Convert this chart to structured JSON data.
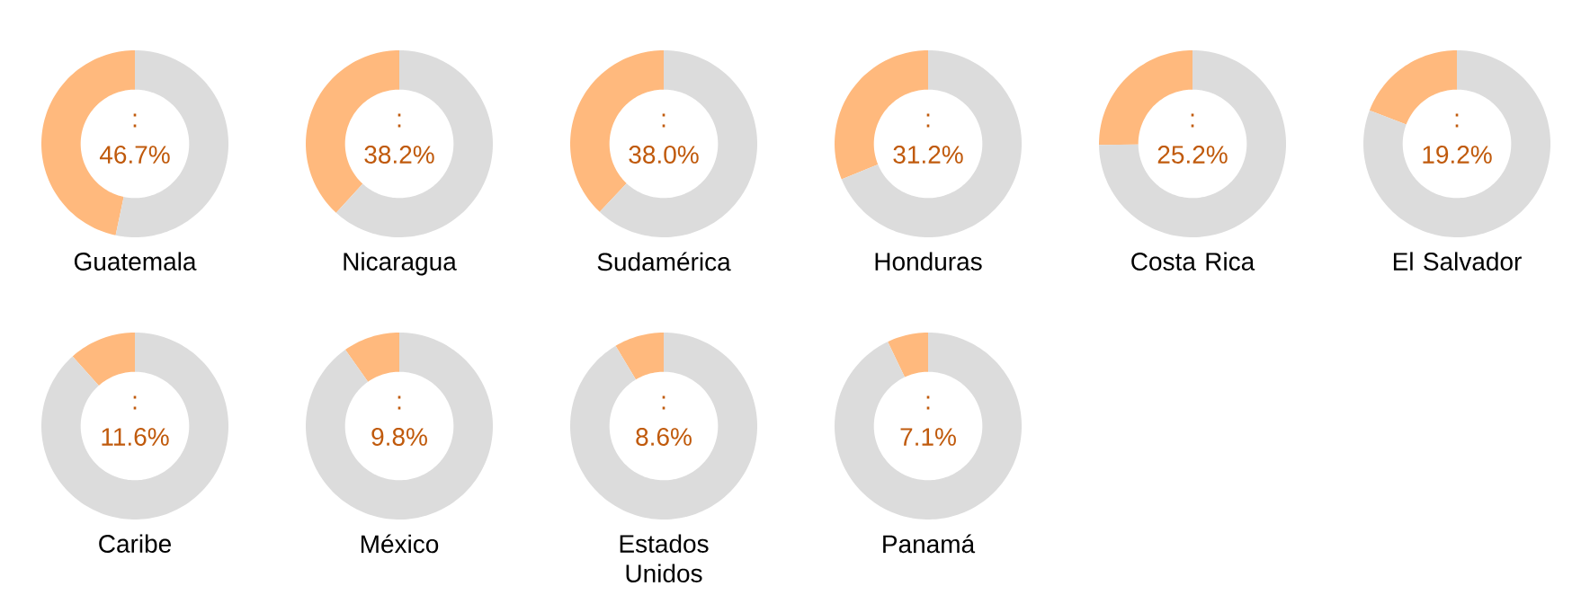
{
  "chart_data": [
    {
      "type": "donut",
      "title": "Guatemala",
      "categories": [
        null,
        null
      ],
      "values": [
        46.7,
        53.3
      ],
      "colors": [
        "#ffb97d",
        "#dcdcdc"
      ],
      "annotations": [
        ":",
        "46.7%"
      ]
    },
    {
      "type": "donut",
      "title": "Nicaragua",
      "categories": [
        null,
        null
      ],
      "values": [
        38.2,
        61.8
      ],
      "colors": [
        "#ffb97d",
        "#dcdcdc"
      ],
      "annotations": [
        ":",
        "38.2%"
      ]
    },
    {
      "type": "donut",
      "title": "Sudamérica",
      "categories": [
        null,
        null
      ],
      "values": [
        38.0,
        62.0
      ],
      "colors": [
        "#ffb97d",
        "#dcdcdc"
      ],
      "annotations": [
        ":",
        "38.0%"
      ]
    },
    {
      "type": "donut",
      "title": "Honduras",
      "categories": [
        null,
        null
      ],
      "values": [
        31.2,
        68.8
      ],
      "colors": [
        "#ffb97d",
        "#dcdcdc"
      ],
      "annotations": [
        ":",
        "31.2%"
      ]
    },
    {
      "type": "donut",
      "title": "Costa Rica",
      "categories": [
        null,
        null
      ],
      "values": [
        25.2,
        74.8
      ],
      "colors": [
        "#ffb97d",
        "#dcdcdc"
      ],
      "annotations": [
        ":",
        "25.2%"
      ]
    },
    {
      "type": "donut",
      "title": "El Salvador",
      "categories": [
        null,
        null
      ],
      "values": [
        19.2,
        80.8
      ],
      "colors": [
        "#ffb97d",
        "#dcdcdc"
      ],
      "annotations": [
        ":",
        "19.2%"
      ]
    },
    {
      "type": "donut",
      "title": "Caribe",
      "categories": [
        null,
        null
      ],
      "values": [
        11.6,
        88.4
      ],
      "colors": [
        "#ffb97d",
        "#dcdcdc"
      ],
      "annotations": [
        ":",
        "11.6%"
      ]
    },
    {
      "type": "donut",
      "title": "México",
      "categories": [
        null,
        null
      ],
      "values": [
        9.8,
        90.2
      ],
      "colors": [
        "#ffb97d",
        "#dcdcdc"
      ],
      "annotations": [
        ":",
        "9.8%"
      ]
    },
    {
      "type": "donut",
      "title": "Estados Unidos",
      "categories": [
        null,
        null
      ],
      "values": [
        8.6,
        91.4
      ],
      "colors": [
        "#ffb97d",
        "#dcdcdc"
      ],
      "annotations": [
        ":",
        "8.6%"
      ]
    },
    {
      "type": "donut",
      "title": "Panamá",
      "categories": [
        null,
        null
      ],
      "values": [
        7.1,
        92.9
      ],
      "colors": [
        "#ffb97d",
        "#dcdcdc"
      ],
      "annotations": [
        ":",
        "7.1%"
      ]
    }
  ]
}
